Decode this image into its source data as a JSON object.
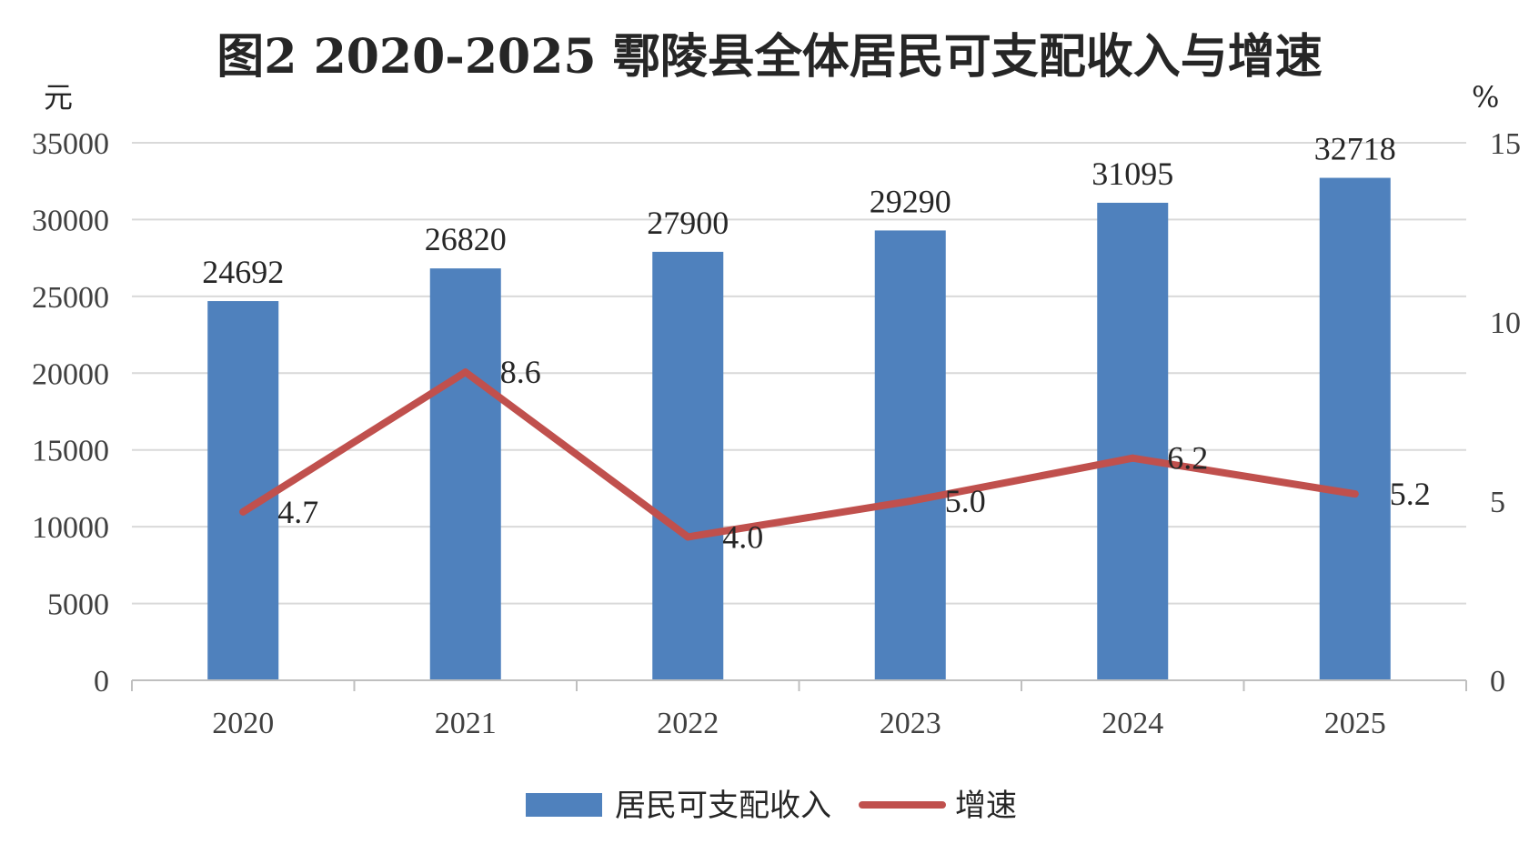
{
  "chart_data": {
    "type": "bar",
    "title": "图2 2020-2025 鄠陵县全体居民可支配收入与增速",
    "categories": [
      "2020",
      "2021",
      "2022",
      "2023",
      "2024",
      "2025"
    ],
    "y_left": {
      "unit": "元",
      "min": 0,
      "max": 35000,
      "ticks": [
        0,
        5000,
        10000,
        15000,
        20000,
        25000,
        30000,
        35000
      ]
    },
    "y_right": {
      "unit": "%",
      "min": 0,
      "max": 15,
      "ticks": [
        0,
        5,
        10,
        15
      ]
    },
    "series": [
      {
        "name": "居民可支配收入",
        "type": "bar",
        "axis": "left",
        "color": "#4f81bd",
        "values": [
          24692,
          26820,
          27900,
          29290,
          31095,
          32718
        ]
      },
      {
        "name": "增速",
        "type": "line",
        "axis": "right",
        "color": "#c0504d",
        "values": [
          4.7,
          8.6,
          4.0,
          5.0,
          6.2,
          5.2
        ]
      }
    ],
    "grid": true,
    "legend_position": "bottom"
  }
}
